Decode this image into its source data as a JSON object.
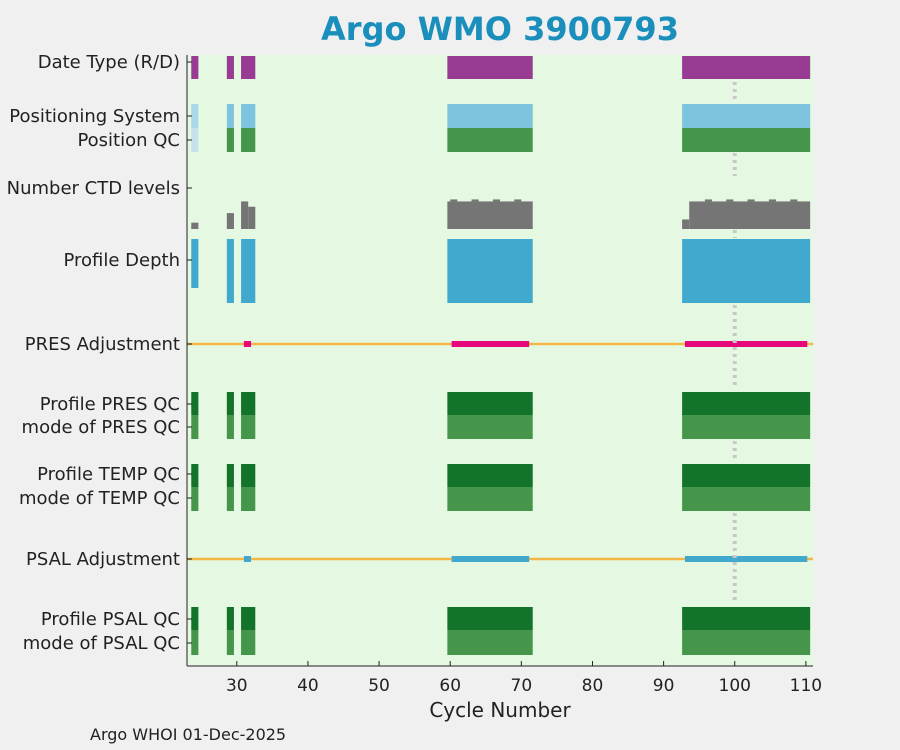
{
  "chart_data": {
    "type": "heatmap",
    "title": "Argo WMO 3900793",
    "xlabel": "Cycle Number",
    "ylabel": "",
    "xlim": [
      23,
      111
    ],
    "xticks": [
      30,
      40,
      50,
      60,
      70,
      80,
      90,
      100,
      110
    ],
    "grid": false,
    "reference_line": {
      "x": 100,
      "style": "dotted"
    },
    "row_labels": [
      "Date Type (R/D)",
      "Positioning System",
      "Position QC",
      "Number CTD levels",
      "Profile Depth",
      "PRES Adjustment",
      "Profile PRES QC",
      "mode of PRES QC",
      "Profile TEMP QC",
      "mode of TEMP QC",
      "PSAL Adjustment",
      "Profile PSAL QC",
      "mode of PSAL QC"
    ],
    "cycle_segments": [
      [
        23.6,
        24.6
      ],
      [
        28.6,
        29.6
      ],
      [
        30.6,
        32.6
      ],
      [
        59.6,
        71.6
      ],
      [
        92.6,
        110.6
      ]
    ],
    "colors": {
      "plot_background": "#e5f8e1",
      "figure_background": "#f0f0f0",
      "title": "#1a8fbc",
      "date_type": "#973b93",
      "positioning_system": "#7ec4de",
      "positioning_system_first": "#a8d8ea",
      "position_qc": "#45964a",
      "position_qc_first": "#c7e1ec",
      "ctd_levels": "#757575",
      "profile_depth": "#42a9ce",
      "pres_adjustment": "#e6077b",
      "psal_adjustment": "#42a9ce",
      "adjustment_baseline": "#f4b647",
      "profile_qc": "#14732b",
      "mode_qc": "#45964a",
      "reference_line": "#c8c8c8"
    },
    "number_ctd_levels": [
      {
        "x0": 23.6,
        "x1": 24.6,
        "level": 0.12
      },
      {
        "x0": 28.6,
        "x1": 29.6,
        "level": 0.3
      },
      {
        "x0": 30.6,
        "x1": 31.6,
        "level": 0.52
      },
      {
        "x0": 31.6,
        "x1": 32.6,
        "level": 0.42
      },
      {
        "x0": 59.6,
        "x1": 71.6,
        "level": 0.52
      },
      {
        "x0": 92.6,
        "x1": 93.6,
        "level": 0.18
      },
      {
        "x0": 93.6,
        "x1": 110.6,
        "level": 0.52
      }
    ],
    "adjustment_segments": [
      {
        "row": "PRES Adjustment",
        "x0": 31.0,
        "x1": 32.0
      },
      {
        "row": "PRES Adjustment",
        "x0": 60.2,
        "x1": 71.1
      },
      {
        "row": "PRES Adjustment",
        "x0": 93.0,
        "x1": 110.2
      },
      {
        "row": "PSAL Adjustment",
        "x0": 31.0,
        "x1": 32.0
      },
      {
        "row": "PSAL Adjustment",
        "x0": 60.2,
        "x1": 71.1
      },
      {
        "row": "PSAL Adjustment",
        "x0": 93.0,
        "x1": 110.2
      }
    ],
    "adjustment_line_range": [
      23,
      111
    ]
  },
  "footer": "Argo WHOI 01-Dec-2025"
}
